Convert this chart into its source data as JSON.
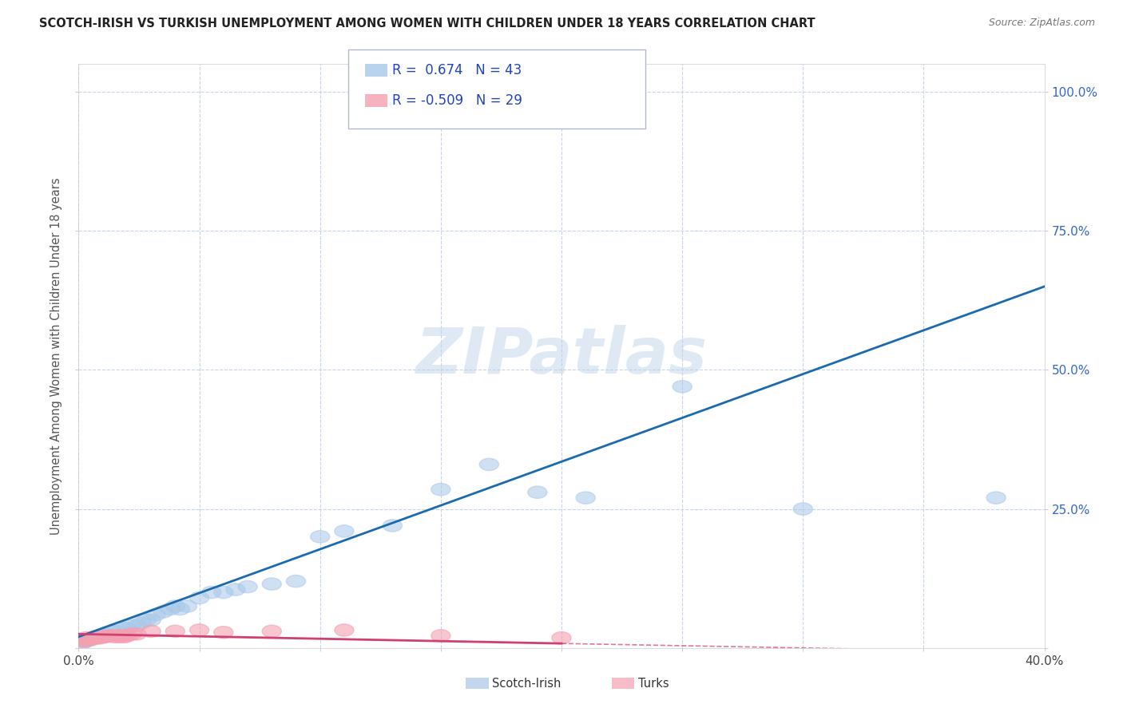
{
  "title": "SCOTCH-IRISH VS TURKISH UNEMPLOYMENT AMONG WOMEN WITH CHILDREN UNDER 18 YEARS CORRELATION CHART",
  "source": "Source: ZipAtlas.com",
  "ylabel": "Unemployment Among Women with Children Under 18 years",
  "xlim": [
    0.0,
    0.4
  ],
  "ylim": [
    0.0,
    1.05
  ],
  "xticks": [
    0.0,
    0.05,
    0.1,
    0.15,
    0.2,
    0.25,
    0.3,
    0.35,
    0.4
  ],
  "xticklabels": [
    "0.0%",
    "",
    "",
    "",
    "",
    "",
    "",
    "",
    "40.0%"
  ],
  "yticks": [
    0.0,
    0.25,
    0.5,
    0.75,
    1.0
  ],
  "yticklabels_right": [
    "",
    "25.0%",
    "50.0%",
    "75.0%",
    "100.0%"
  ],
  "scotch_irish_color": "#a8c8e8",
  "turks_color": "#f4a0b0",
  "scotch_irish_line_color": "#1a6ab0",
  "turks_line_color": "#d04070",
  "R_scotch": 0.674,
  "N_scotch": 43,
  "R_turks": -0.509,
  "N_turks": 29,
  "background_color": "#ffffff",
  "grid_color": "#c8d4e8",
  "watermark": "ZIPatlas",
  "legend_scotch": "Scotch-Irish",
  "legend_turks": "Turks",
  "scotch_irish_x": [
    0.001,
    0.002,
    0.003,
    0.004,
    0.005,
    0.006,
    0.007,
    0.008,
    0.009,
    0.01,
    0.012,
    0.014,
    0.016,
    0.018,
    0.02,
    0.022,
    0.024,
    0.026,
    0.028,
    0.03,
    0.032,
    0.035,
    0.038,
    0.04,
    0.042,
    0.045,
    0.05,
    0.055,
    0.06,
    0.065,
    0.07,
    0.08,
    0.09,
    0.1,
    0.11,
    0.13,
    0.15,
    0.17,
    0.19,
    0.21,
    0.25,
    0.3,
    0.38
  ],
  "scotch_irish_y": [
    0.008,
    0.01,
    0.012,
    0.015,
    0.015,
    0.018,
    0.018,
    0.02,
    0.02,
    0.022,
    0.025,
    0.03,
    0.03,
    0.035,
    0.035,
    0.04,
    0.04,
    0.045,
    0.05,
    0.05,
    0.06,
    0.065,
    0.07,
    0.075,
    0.07,
    0.075,
    0.09,
    0.1,
    0.1,
    0.105,
    0.11,
    0.115,
    0.12,
    0.2,
    0.21,
    0.22,
    0.285,
    0.33,
    0.28,
    0.27,
    0.47,
    0.25,
    0.27
  ],
  "turks_x": [
    0.001,
    0.002,
    0.003,
    0.004,
    0.005,
    0.006,
    0.007,
    0.008,
    0.009,
    0.01,
    0.011,
    0.012,
    0.013,
    0.015,
    0.016,
    0.017,
    0.018,
    0.019,
    0.02,
    0.022,
    0.024,
    0.03,
    0.04,
    0.05,
    0.06,
    0.08,
    0.11,
    0.15,
    0.2
  ],
  "turks_y": [
    0.015,
    0.012,
    0.018,
    0.015,
    0.015,
    0.018,
    0.02,
    0.018,
    0.018,
    0.02,
    0.02,
    0.022,
    0.022,
    0.02,
    0.022,
    0.02,
    0.022,
    0.02,
    0.022,
    0.025,
    0.025,
    0.03,
    0.03,
    0.032,
    0.028,
    0.03,
    0.032,
    0.022,
    0.018
  ]
}
